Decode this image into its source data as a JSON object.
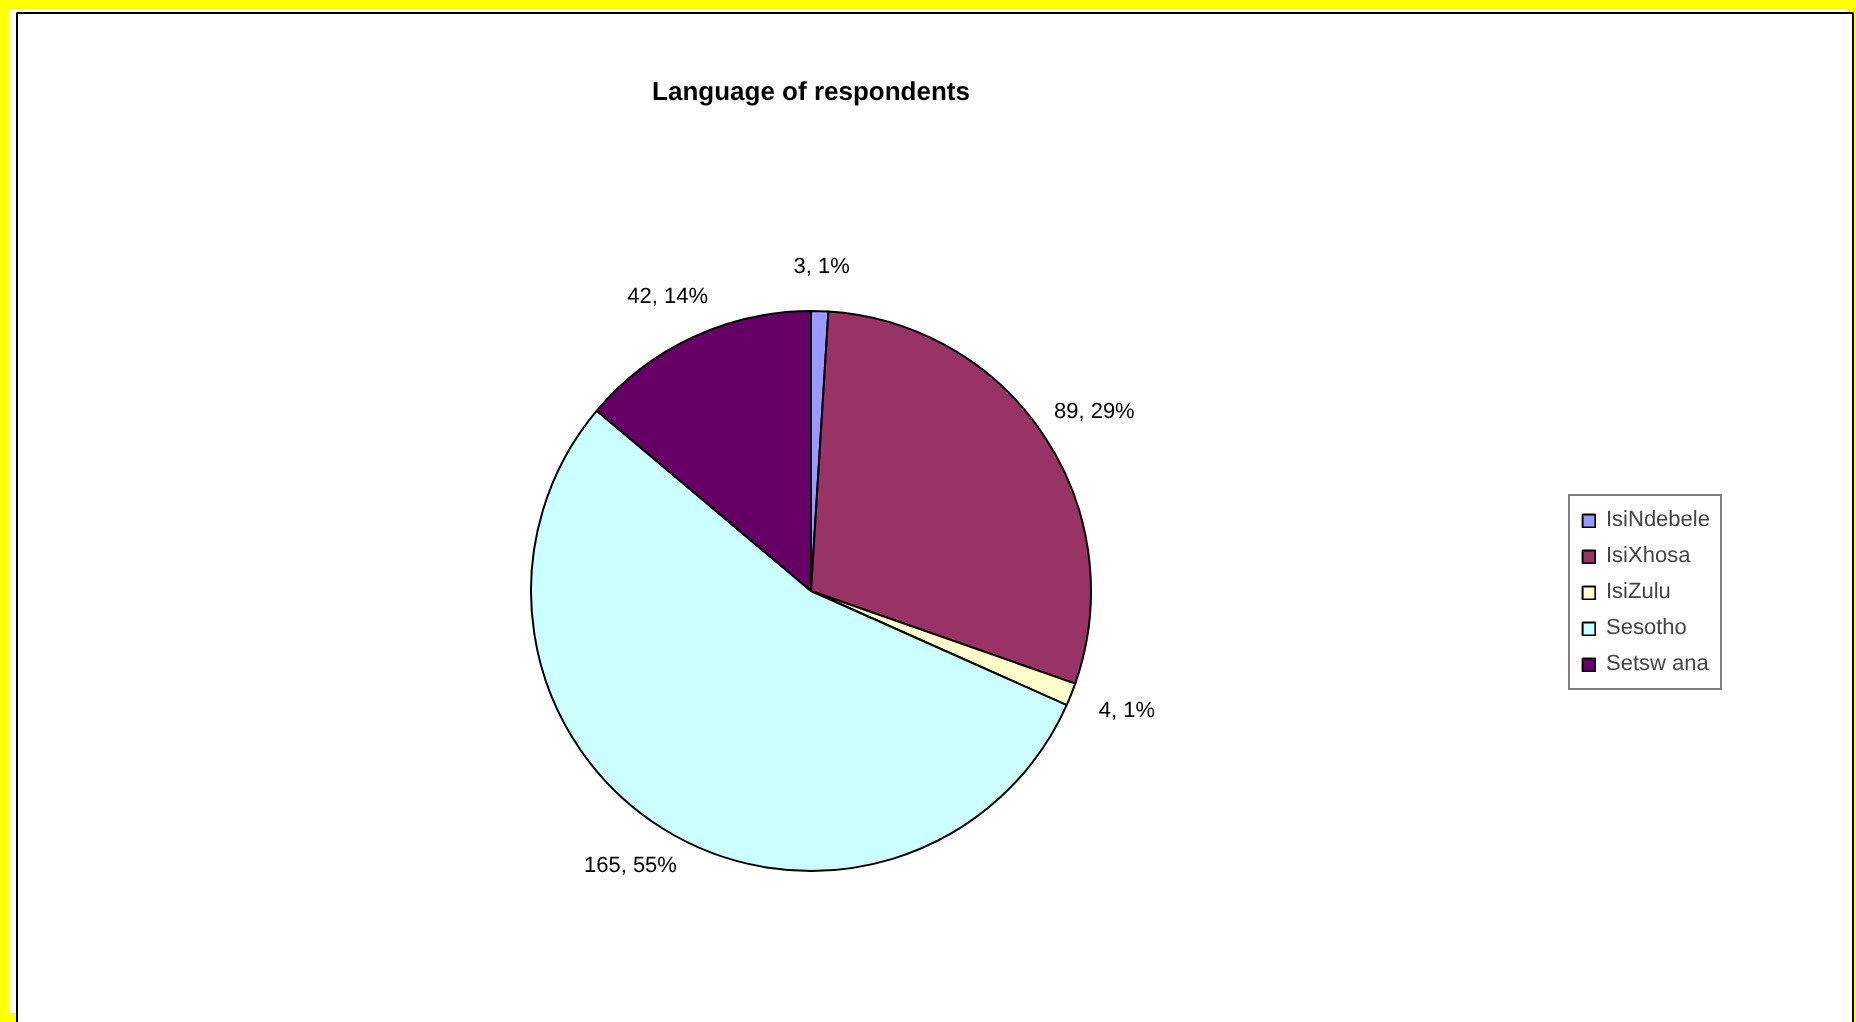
{
  "chart_data": {
    "type": "pie",
    "title": "Language of respondents",
    "categories": [
      "IsiNdebele",
      "IsiXhosa",
      "IsiZulu",
      "Sesotho",
      "Setsw ana"
    ],
    "values": [
      3,
      89,
      4,
      165,
      42
    ],
    "colors": [
      "#9999ff",
      "#993366",
      "#ffffcc",
      "#ccffff",
      "#660066"
    ],
    "value_labels": [
      "3, 1%",
      "89, 29%",
      "4, 1%",
      "165, 55%",
      "42, 14%"
    ],
    "legend": "right"
  }
}
